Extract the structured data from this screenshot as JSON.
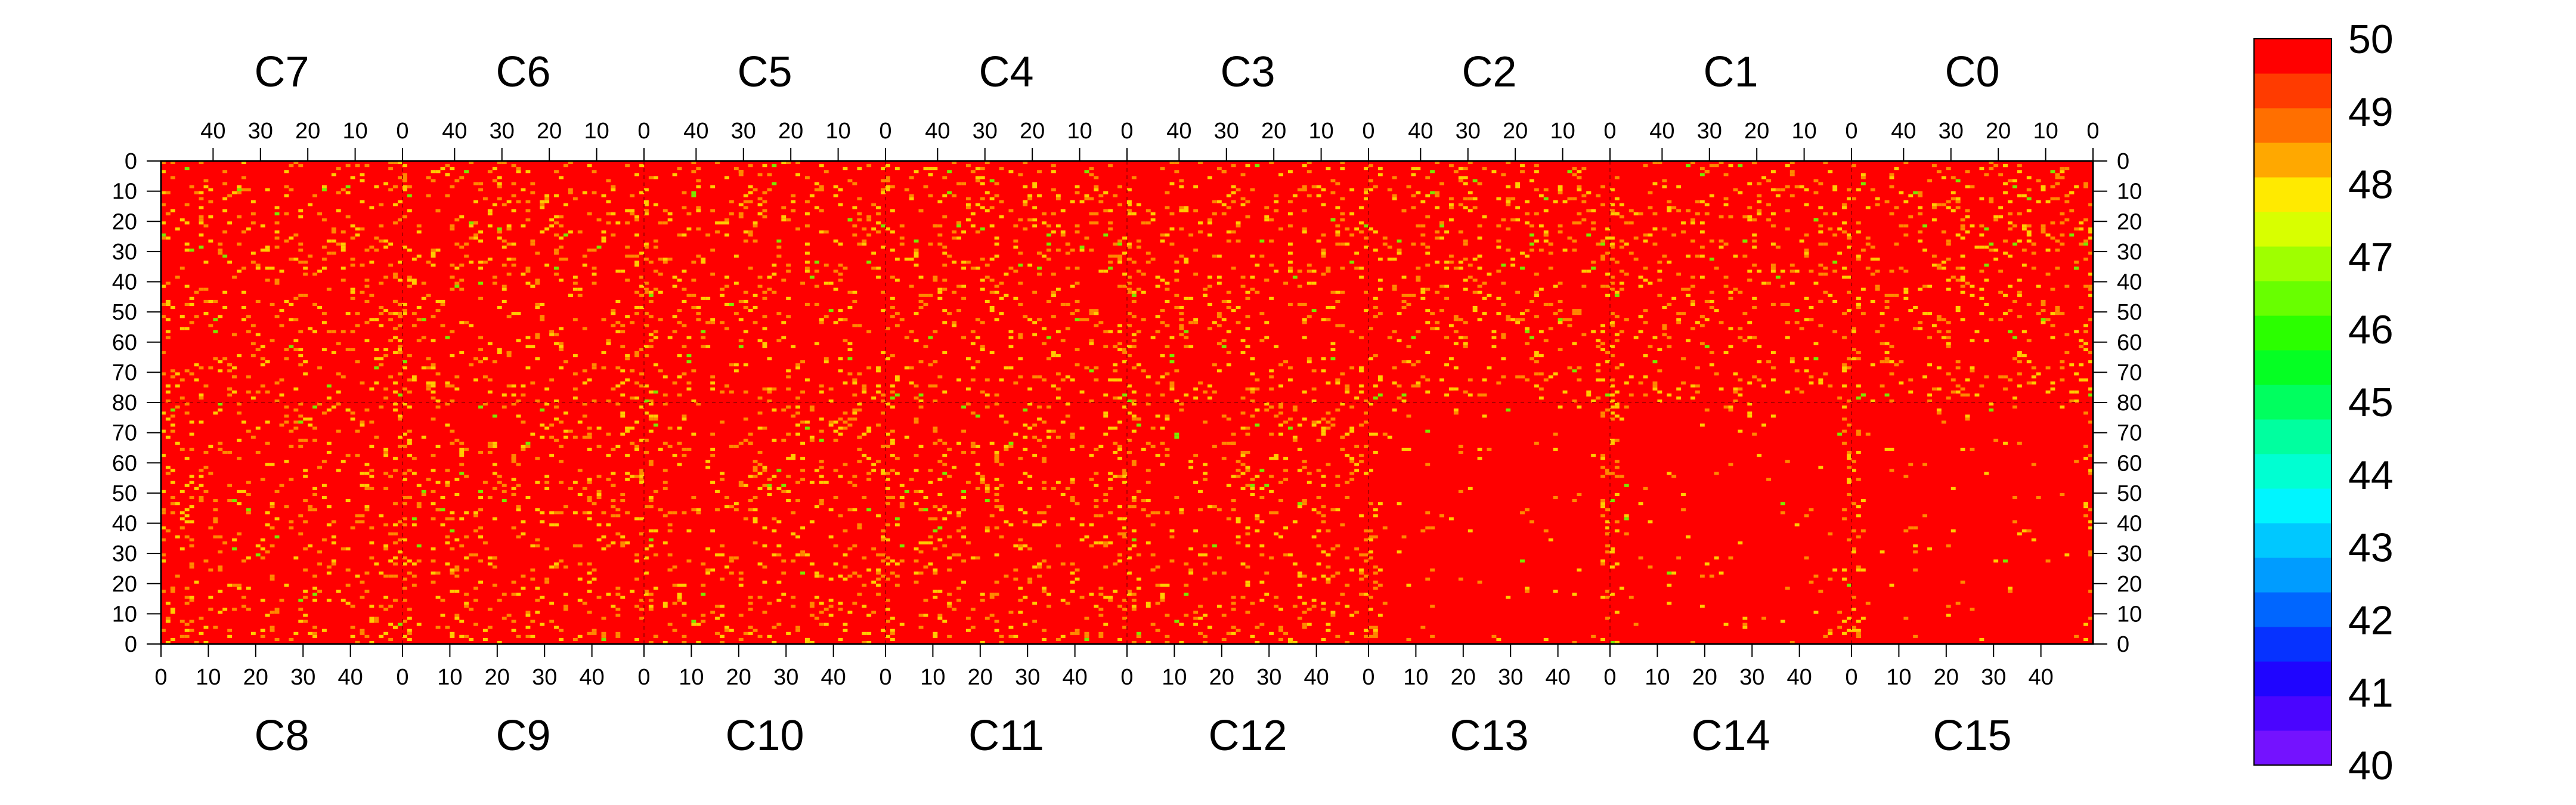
{
  "chart_data": {
    "type": "heatmap",
    "title": "",
    "xlabel": "",
    "ylabel": "",
    "top_row": {
      "chip_labels": [
        "C7",
        "C6",
        "C5",
        "C4",
        "C3",
        "C2",
        "C1",
        "C0"
      ],
      "tick_labels": [
        "40",
        "30",
        "20",
        "10",
        "0"
      ],
      "column_range": [
        0,
        51
      ],
      "column_direction": "descending"
    },
    "bottom_row": {
      "chip_labels": [
        "C8",
        "C9",
        "C10",
        "C11",
        "C12",
        "C13",
        "C14",
        "C15"
      ],
      "tick_labels": [
        "0",
        "10",
        "20",
        "30",
        "40"
      ],
      "column_range": [
        0,
        51
      ],
      "column_direction": "ascending"
    },
    "y_axis": {
      "top_ticks": [
        "0",
        "10",
        "20",
        "30",
        "40",
        "50",
        "60",
        "70",
        "80"
      ],
      "bottom_ticks": [
        "70",
        "60",
        "50",
        "40",
        "30",
        "20",
        "10",
        "0"
      ],
      "range_per_half": [
        0,
        80
      ]
    },
    "colorbar": {
      "range": [
        40,
        50
      ],
      "ticks": [
        "50",
        "49",
        "48",
        "47",
        "46",
        "45",
        "44",
        "43",
        "42",
        "41",
        "40"
      ],
      "levels": 20,
      "colors": [
        "#7412ff",
        "#4a05ff",
        "#1f05ff",
        "#0632ff",
        "#0066ff",
        "#009cff",
        "#00c8ff",
        "#00f5ff",
        "#00ffd2",
        "#00ff9f",
        "#00ff5f",
        "#05ff23",
        "#2bff00",
        "#68ff00",
        "#9fff00",
        "#d8ff00",
        "#ffea00",
        "#ffa800",
        "#ff6f00",
        "#ff3b00",
        "#ff0000"
      ]
    },
    "dominant_value": 50,
    "background_color": "#ff0000",
    "highlight_color": "#ffcc00",
    "minority_color": "#ff8800",
    "rare_color": "#7ae800"
  }
}
